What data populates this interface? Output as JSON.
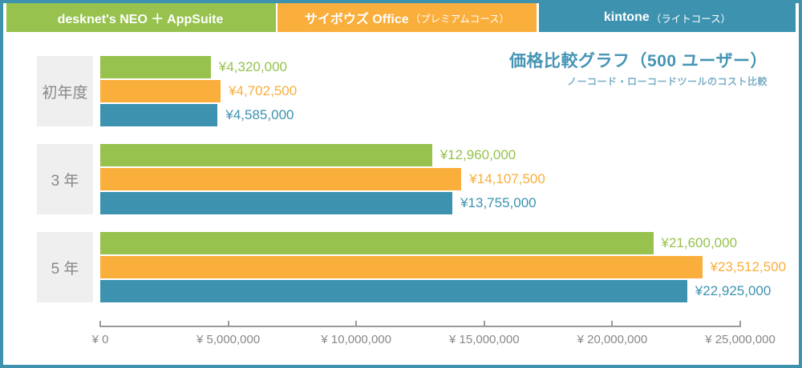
{
  "legend": [
    {
      "name": "desknet's NEO ＋ AppSuite",
      "plan": "",
      "color": "#96C24D"
    },
    {
      "name": "サイボウズ Office",
      "plan": "（プレミアムコース）",
      "color": "#FAAE3B"
    },
    {
      "name": "kintone",
      "plan": "（ライトコース）",
      "color": "#3D93AF"
    }
  ],
  "chart_data": {
    "type": "bar",
    "orientation": "horizontal",
    "title": "価格比較グラフ（500 ユーザー）",
    "subtitle": "ノーコード・ローコードツールのコスト比較",
    "categories": [
      "初年度",
      "3 年",
      "5 年"
    ],
    "series": [
      {
        "name": "desknet's NEO ＋ AppSuite",
        "color": "#96C24D",
        "values": [
          4320000,
          12960000,
          21600000
        ],
        "labels": [
          "¥4,320,000",
          "¥12,960,000",
          "¥21,600,000"
        ]
      },
      {
        "name": "サイボウズ Office（プレミアムコース）",
        "color": "#FAAE3B",
        "values": [
          4702500,
          14107500,
          23512500
        ],
        "labels": [
          "¥4,702,500",
          "¥14,107,500",
          "¥23,512,500"
        ]
      },
      {
        "name": "kintone（ライトコース）",
        "color": "#3D93AF",
        "values": [
          4585000,
          13755000,
          22925000
        ],
        "labels": [
          "¥4,585,000",
          "¥13,755,000",
          "¥22,925,000"
        ]
      }
    ],
    "xlim": [
      0,
      25000000
    ],
    "x_ticks": [
      "¥ 0",
      "¥ 5,000,000",
      "¥ 10,000,000",
      "¥ 15,000,000",
      "¥ 20,000,000",
      "¥ 25,000,000"
    ],
    "grid": false,
    "legend_position": "top",
    "colors": {
      "border": "#3E92AE",
      "title": "#4695B5",
      "subtitle": "#79AEC6",
      "axis": "#9A9A9A",
      "category_box_bg": "#EFEFEF",
      "category_text": "#888888"
    }
  }
}
